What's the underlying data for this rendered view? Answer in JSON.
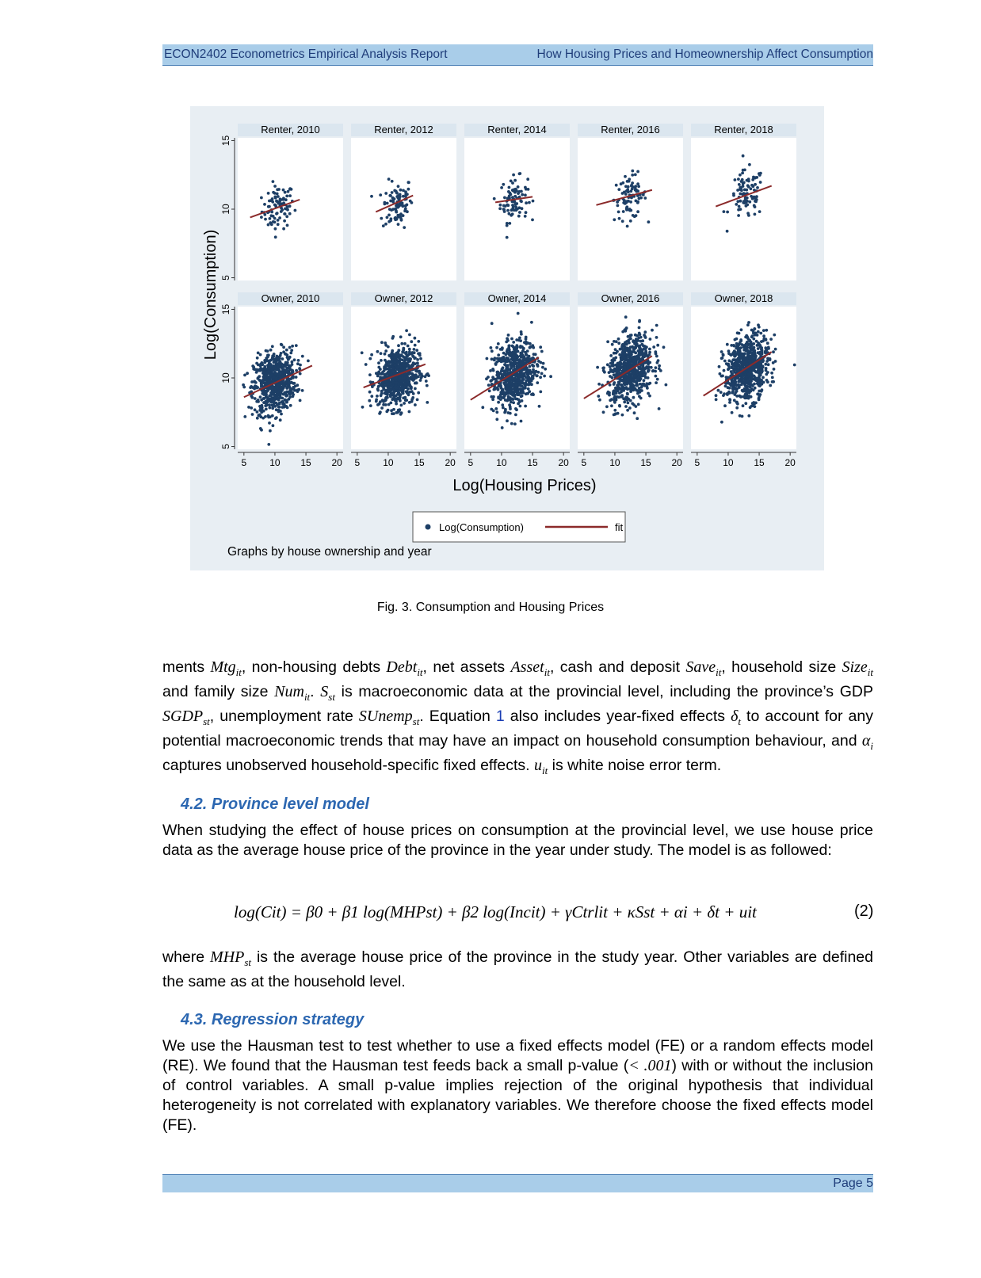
{
  "header": {
    "left": "ECON2402 Econometrics Empirical Analysis Report",
    "right": "How Housing Prices and Homeownership Affect Consumption"
  },
  "figure": {
    "caption": "Fig. 3. Consumption and Housing Prices",
    "note": "Graphs by house ownership and year",
    "legend_points": "Log(Consumption)",
    "legend_fit": "fit"
  },
  "chart_data": {
    "type": "scatter",
    "xlabel": "Log(Housing Prices)",
    "ylabel": "Log(Consumption)",
    "xlim": [
      4,
      21
    ],
    "ylim": [
      4.8,
      15.2
    ],
    "x_ticks": [
      5,
      10,
      15,
      20
    ],
    "y_ticks": [
      5,
      10,
      15
    ],
    "point_color": "#1d3f66",
    "fit_color": "#8b2a2a",
    "panel_title_bg": "#dbe6ef",
    "panels": [
      {
        "title": "Renter, 2010",
        "cx": 10.5,
        "cy": 10.1,
        "sx": 1.3,
        "sy": 0.8,
        "n": 90,
        "fit": [
          [
            6,
            9.4
          ],
          [
            14,
            10.7
          ]
        ]
      },
      {
        "title": "Renter, 2012",
        "cx": 11.5,
        "cy": 10.4,
        "sx": 1.2,
        "sy": 0.9,
        "n": 90,
        "fit": [
          [
            8,
            9.8
          ],
          [
            14,
            11.0
          ]
        ]
      },
      {
        "title": "Renter, 2014",
        "cx": 12.0,
        "cy": 10.7,
        "sx": 1.1,
        "sy": 0.8,
        "n": 90,
        "fit": [
          [
            9,
            10.5
          ],
          [
            15,
            10.9
          ]
        ]
      },
      {
        "title": "Renter, 2016",
        "cx": 12.5,
        "cy": 10.9,
        "sx": 1.3,
        "sy": 0.8,
        "n": 90,
        "fit": [
          [
            7,
            10.3
          ],
          [
            16,
            11.4
          ]
        ]
      },
      {
        "title": "Renter, 2018",
        "cx": 13.0,
        "cy": 11.0,
        "sx": 1.4,
        "sy": 0.9,
        "n": 90,
        "fit": [
          [
            8,
            10.2
          ],
          [
            17,
            11.7
          ]
        ]
      },
      {
        "title": "Owner, 2010",
        "cx": 10.0,
        "cy": 9.7,
        "sx": 1.7,
        "sy": 1.1,
        "n": 700,
        "fit": [
          [
            5,
            8.6
          ],
          [
            16,
            10.9
          ]
        ]
      },
      {
        "title": "Owner, 2012",
        "cx": 11.5,
        "cy": 10.1,
        "sx": 1.7,
        "sy": 1.1,
        "n": 700,
        "fit": [
          [
            6,
            9.3
          ],
          [
            16,
            11.0
          ]
        ]
      },
      {
        "title": "Owner, 2014",
        "cx": 12.0,
        "cy": 10.3,
        "sx": 1.8,
        "sy": 1.2,
        "n": 700,
        "fit": [
          [
            5,
            8.4
          ],
          [
            16,
            11.5
          ]
        ]
      },
      {
        "title": "Owner, 2016",
        "cx": 12.5,
        "cy": 10.6,
        "sx": 1.8,
        "sy": 1.2,
        "n": 700,
        "fit": [
          [
            5,
            8.5
          ],
          [
            16,
            11.6
          ]
        ]
      },
      {
        "title": "Owner, 2018",
        "cx": 13.0,
        "cy": 10.7,
        "sx": 1.8,
        "sy": 1.2,
        "n": 700,
        "fit": [
          [
            6,
            8.7
          ],
          [
            17,
            11.9
          ]
        ]
      }
    ]
  },
  "body": {
    "para1": [
      "ments ",
      "Mtg_it",
      ", non-housing debts ",
      "Debt_it",
      ", net assets ",
      "Asset_it",
      ", cash and deposit ",
      "Save_it",
      ", household size ",
      "Size_it",
      " and family size ",
      "Num_it",
      ". ",
      "S_st",
      " is macroeconomic data at the provincial level, including the province’s GDP ",
      "SGDP_st",
      ", unemployment rate ",
      "SUnemp_st",
      ". Equation ",
      "1",
      " also includes year-fixed effects ",
      "δ_t",
      " to account for any potential macroeconomic trends that may have an impact on household consumption behaviour, and ",
      "α_i",
      " captures unobserved household-specific fixed effects. ",
      "u_it",
      " is white noise error term."
    ],
    "sec42_title": "4.2. Province level model",
    "sec42_text": "When studying the effect of house prices on consumption at the provincial level, we use house price data as the average house price of the province in the year under study. The model is as followed:",
    "equation": "log(Cit) = β0 + β1 log(MHPst) + β2 log(Incit) + γCtrlit + κSst + αi + δt + uit",
    "equation_number": "(2)",
    "after_eq_1": "where ",
    "after_eq_var": "MHP",
    "after_eq_sub": "st",
    "after_eq_2": " is the average house price of the province in the study year. Other variables are defined the same as at the household level.",
    "sec43_title": "4.3. Regression strategy",
    "sec43_text_1": "We use the Hausman test to test whether to use a fixed effects model (FE) or a random effects model (RE). We found that the Hausman test feeds back a small p-value (",
    "sec43_math": "< .001",
    "sec43_text_2": ") with or without the inclusion of control variables. A small p-value implies rejection of the original hypothesis that individual heterogeneity is not correlated with explanatory variables. We therefore choose the fixed effects model (FE)."
  },
  "footer": {
    "page": "Page 5"
  }
}
